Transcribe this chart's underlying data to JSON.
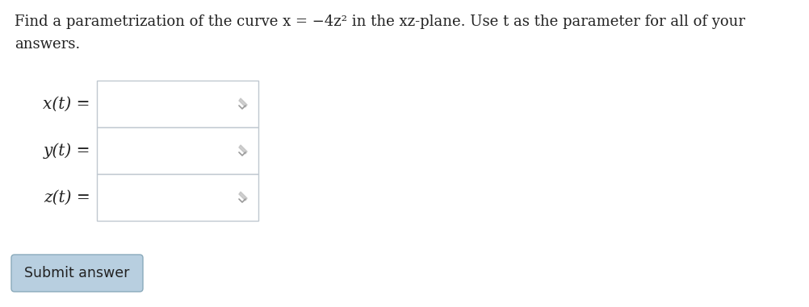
{
  "title_line1": "Find a parametrization of the curve x = −4z² in the xz-plane. Use t as the parameter for all of your",
  "title_line2": "answers.",
  "labels": [
    "x(t) =",
    "y(t) =",
    "z(t) ="
  ],
  "background_color": "#ffffff",
  "text_color": "#222222",
  "box_bg": "#ffffff",
  "box_border": "#c0c8d0",
  "submit_text": "Submit answer",
  "submit_bg": "#b8cfe0",
  "submit_border": "#8aaabb",
  "title_fontsize": 13.0,
  "label_fontsize": 14.5,
  "submit_fontsize": 12.5,
  "pencil_color": "#aaaaaa"
}
